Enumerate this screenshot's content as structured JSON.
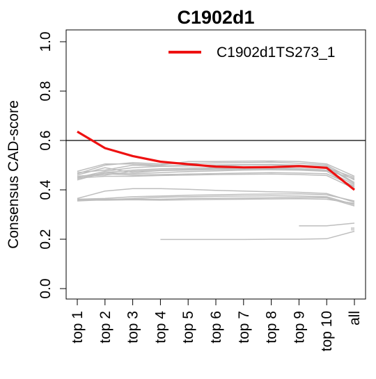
{
  "chart_data": {
    "type": "line",
    "title": "C1902d1",
    "xlabel": "",
    "ylabel": "Consensus CAD-score",
    "categories": [
      "top 1",
      "top 2",
      "top 3",
      "top 4",
      "top 5",
      "top 6",
      "top 7",
      "top 8",
      "top 9",
      "top 10",
      "all"
    ],
    "ylim": [
      0.0,
      1.0
    ],
    "yticks": [
      "0.0",
      "0.2",
      "0.4",
      "0.6",
      "0.8",
      "1.0"
    ],
    "reference_line": 0.6,
    "grid": false,
    "legend_position": "top-right",
    "colors": {
      "highlight": "#ee1111",
      "background_series": "#bebebe",
      "axis": "#000000"
    },
    "highlight_series": {
      "name": "C1902d1TS273_1",
      "values": [
        0.636,
        0.569,
        0.537,
        0.514,
        0.504,
        0.494,
        0.491,
        0.492,
        0.496,
        0.489,
        0.4
      ]
    },
    "background_series": [
      [
        0.445,
        0.47,
        0.48,
        0.485,
        0.488,
        0.49,
        0.492,
        0.494,
        0.495,
        0.49,
        0.45
      ],
      [
        0.465,
        0.5,
        0.51,
        0.505,
        0.507,
        0.509,
        0.51,
        0.512,
        0.508,
        0.5,
        0.44
      ],
      [
        0.47,
        0.48,
        0.5,
        0.497,
        0.499,
        0.501,
        0.502,
        0.503,
        0.5,
        0.495,
        0.43
      ],
      [
        0.455,
        0.46,
        0.475,
        0.48,
        0.483,
        0.486,
        0.488,
        0.489,
        0.487,
        0.48,
        0.42
      ],
      [
        0.44,
        0.47,
        0.465,
        0.47,
        0.474,
        0.477,
        0.48,
        0.481,
        0.48,
        0.475,
        0.41
      ],
      [
        0.46,
        0.49,
        0.47,
        0.478,
        0.48,
        0.482,
        0.484,
        0.485,
        0.483,
        0.478,
        0.445
      ],
      [
        0.45,
        0.475,
        0.49,
        0.495,
        0.497,
        0.498,
        0.5,
        0.501,
        0.499,
        0.493,
        0.425
      ],
      [
        0.455,
        0.465,
        0.46,
        0.462,
        0.464,
        0.466,
        0.468,
        0.47,
        0.468,
        0.465,
        0.415
      ],
      [
        0.475,
        0.505,
        0.505,
        0.5,
        0.515,
        0.515,
        0.516,
        0.517,
        0.515,
        0.505,
        0.455
      ],
      [
        0.448,
        0.455,
        0.455,
        0.458,
        0.46,
        0.462,
        0.463,
        0.464,
        0.462,
        0.458,
        0.405
      ],
      [
        0.365,
        0.395,
        0.405,
        0.405,
        0.402,
        0.398,
        0.395,
        0.392,
        0.39,
        0.385,
        0.35
      ],
      [
        0.355,
        0.36,
        0.365,
        0.37,
        0.372,
        0.374,
        0.375,
        0.376,
        0.375,
        0.372,
        0.34
      ],
      [
        0.36,
        0.362,
        0.362,
        0.362,
        0.365,
        0.366,
        0.367,
        0.368,
        0.369,
        0.368,
        0.335
      ],
      [
        0.358,
        0.358,
        0.36,
        0.358,
        0.36,
        0.361,
        0.362,
        0.363,
        0.364,
        0.362,
        0.345
      ],
      [
        0.362,
        0.365,
        0.372,
        0.375,
        0.378,
        0.38,
        0.382,
        0.383,
        0.384,
        0.38,
        0.355
      ],
      [
        null,
        null,
        null,
        0.199,
        0.199,
        0.199,
        0.199,
        0.2,
        0.2,
        0.202,
        0.232
      ],
      [
        null,
        null,
        null,
        null,
        null,
        null,
        null,
        null,
        0.254,
        0.254,
        0.265
      ],
      [
        null,
        null,
        null,
        null,
        null,
        null,
        null,
        null,
        null,
        null,
        0.245
      ],
      [
        null,
        null,
        null,
        null,
        null,
        null,
        null,
        null,
        null,
        null,
        0.238
      ]
    ]
  }
}
